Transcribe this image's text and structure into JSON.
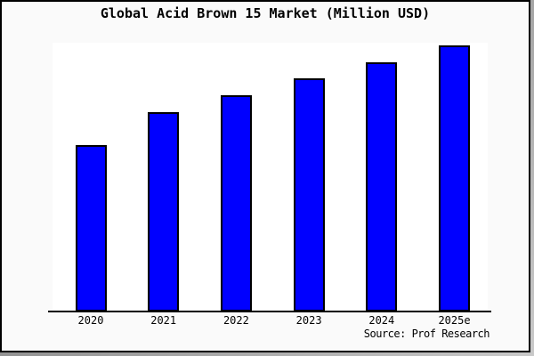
{
  "title": "Global Acid Brown 15 Market (Million USD)",
  "source_label": "Source: Prof Research",
  "colors": {
    "bar_fill": "#0000ff",
    "bar_border": "#000000",
    "background": "#fafafa",
    "plot_background": "#ffffff",
    "axis": "#000000",
    "frame_border": "#000000"
  },
  "chart_data": {
    "type": "bar",
    "title": "Global Acid Brown 15 Market (Million USD)",
    "categories": [
      "2020",
      "2021",
      "2022",
      "2023",
      "2024",
      "2025e"
    ],
    "values": [
      62.6,
      74.9,
      81.3,
      87.6,
      93.7,
      100
    ],
    "xlabel": "",
    "ylabel": "",
    "ylim": [
      0,
      101
    ],
    "grid": false,
    "legend": false,
    "y_axis_shown": false,
    "annotation": "Source: Prof Research"
  }
}
